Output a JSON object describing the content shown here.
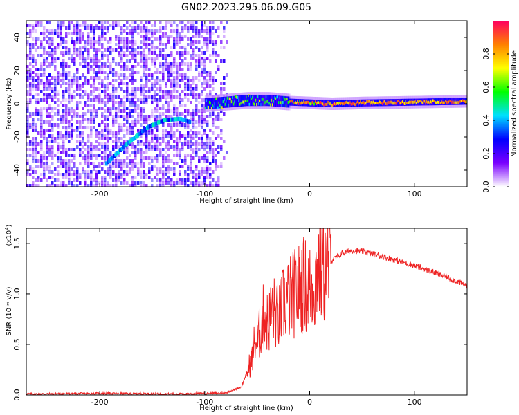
{
  "title": "GN02.2023.295.06.09.G05",
  "chart_data": [
    {
      "type": "heatmap",
      "xlabel": "Height of straight line (km)",
      "ylabel": "Frequency (Hz)",
      "xlim": [
        -270,
        150
      ],
      "ylim": [
        -50,
        50
      ],
      "x_ticks": [
        -200,
        -100,
        0,
        100
      ],
      "x_tick_labels": [
        "-200",
        "-100",
        "0",
        "100"
      ],
      "y_ticks": [
        -40,
        -20,
        0,
        20,
        40
      ],
      "y_tick_labels": [
        "-40",
        "-20",
        "0",
        "20",
        "40"
      ],
      "noise_region_x": [
        -270,
        -80
      ],
      "carrier_trace": {
        "x": [
          -100,
          -80,
          -60,
          -40,
          -20,
          0,
          20,
          50,
          100,
          150
        ],
        "y": [
          0,
          1,
          2,
          2,
          1,
          0.5,
          0,
          0.5,
          1,
          1.5
        ]
      },
      "ghost_trace": {
        "x": [
          -195,
          -175,
          -155,
          -140,
          -125,
          -115
        ],
        "y": [
          -36,
          -24,
          -14,
          -10,
          -9,
          -11
        ]
      },
      "colorbar": {
        "label": "Normalized spectral amplitude",
        "range": [
          0,
          1
        ],
        "ticks": [
          0.0,
          0.2,
          0.4,
          0.6,
          0.8
        ],
        "tick_labels": [
          "0.0",
          "0.2",
          "0.4",
          "0.6",
          "0.8"
        ],
        "colors": [
          "#ffffff",
          "#7a00ff",
          "#0000ff",
          "#00e0ff",
          "#00ff00",
          "#ffff00",
          "#ff8000",
          "#ff0060"
        ]
      },
      "grid": false
    },
    {
      "type": "line",
      "xlabel": "Height of straight line (km)",
      "ylabel": "SNR (10 * v/v)",
      "scale_note": "(x10",
      "scale_exp": "4",
      "scale_close": ")",
      "xlim": [
        -270,
        150
      ],
      "ylim": [
        0,
        1.65
      ],
      "x_ticks": [
        -200,
        -100,
        0,
        100
      ],
      "x_tick_labels": [
        "-200",
        "-100",
        "0",
        "100"
      ],
      "y_ticks": [
        0.0,
        0.5,
        1.0,
        1.5
      ],
      "y_tick_labels": [
        "0.0",
        "0.5",
        "1.0",
        "1.5"
      ],
      "series": [
        {
          "color": "#ee2222",
          "x": [
            -270,
            -200,
            -120,
            -80,
            -65,
            -60,
            -55,
            -52,
            -50,
            -48,
            -45,
            -42,
            -40,
            -35,
            -30,
            -25,
            -20,
            -15,
            -10,
            -5,
            0,
            5,
            8,
            10,
            15,
            20,
            30,
            40,
            50,
            70,
            100,
            130,
            150
          ],
          "y": [
            0.01,
            0.015,
            0.01,
            0.02,
            0.08,
            0.22,
            0.35,
            0.55,
            0.5,
            0.6,
            0.75,
            0.8,
            0.7,
            0.85,
            0.75,
            0.9,
            0.95,
            1.0,
            1.05,
            1.1,
            1.05,
            1.1,
            1.3,
            1.2,
            1.25,
            1.32,
            1.4,
            1.43,
            1.42,
            1.37,
            1.28,
            1.17,
            1.08
          ]
        }
      ],
      "grid": false
    }
  ]
}
